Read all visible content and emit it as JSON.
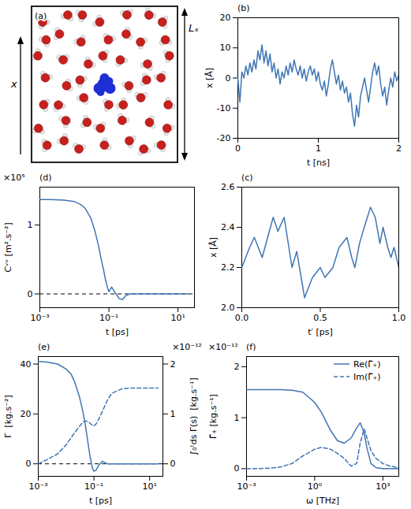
{
  "chart_data": [
    {
      "panel_label": "(a)",
      "type": "image",
      "axis_text": "x",
      "length_text": "Lₓ"
    },
    {
      "panel_label": "(b)",
      "type": "line",
      "x_label": "t [ns]",
      "y_label": "x [Å]",
      "x": [
        0,
        0.025,
        0.05,
        0.075,
        0.1,
        0.125,
        0.15,
        0.175,
        0.2,
        0.225,
        0.25,
        0.275,
        0.3,
        0.325,
        0.35,
        0.375,
        0.4,
        0.425,
        0.45,
        0.475,
        0.5,
        0.525,
        0.55,
        0.575,
        0.6,
        0.625,
        0.65,
        0.675,
        0.7,
        0.725,
        0.75,
        0.775,
        0.8,
        0.825,
        0.85,
        0.875,
        0.9,
        0.925,
        0.95,
        0.975,
        1.0,
        1.025,
        1.05,
        1.075,
        1.1,
        1.125,
        1.15,
        1.175,
        1.2,
        1.225,
        1.25,
        1.275,
        1.3,
        1.325,
        1.35,
        1.375,
        1.4,
        1.425,
        1.45,
        1.475,
        1.5,
        1.525,
        1.55,
        1.575,
        1.6,
        1.625,
        1.65,
        1.675,
        1.7,
        1.725,
        1.75,
        1.775,
        1.8,
        1.825,
        1.85,
        1.875,
        1.9,
        1.925,
        1.95,
        1.975,
        2.0
      ],
      "series": [
        {
          "color": "#3f76b4",
          "line_style": "solid",
          "values": [
            0,
            -8,
            2,
            0,
            4,
            1,
            5,
            2,
            6,
            3,
            9,
            6,
            11,
            5,
            9,
            4,
            8,
            2,
            5,
            0,
            3,
            -2,
            2,
            0,
            4,
            1,
            5,
            2,
            6,
            3,
            1,
            4,
            0,
            3,
            -1,
            2,
            4,
            1,
            3,
            -1,
            2,
            -2,
            -4,
            -1,
            -6,
            -2,
            3,
            6,
            2,
            -2,
            1,
            -4,
            -1,
            -5,
            -3,
            -8,
            -5,
            -12,
            -16,
            -9,
            -13,
            -6,
            -3,
            0,
            -4,
            -8,
            -3,
            2,
            5,
            1,
            4,
            -2,
            -6,
            -3,
            -9,
            -4,
            0,
            -3,
            2,
            -1,
            1
          ]
        }
      ],
      "xlim": [
        0,
        2
      ],
      "xticks": [
        0,
        1,
        2
      ],
      "ylim": [
        -20,
        20
      ],
      "yticks": [
        -20,
        -10,
        0,
        10,
        20
      ]
    },
    {
      "panel_label": "(c)",
      "type": "line",
      "x_label": "t′ [ps]",
      "y_label": "x [Å]",
      "x": [
        0,
        0.05,
        0.08,
        0.13,
        0.2,
        0.23,
        0.27,
        0.32,
        0.35,
        0.4,
        0.45,
        0.5,
        0.53,
        0.58,
        0.62,
        0.67,
        0.7,
        0.72,
        0.75,
        0.78,
        0.82,
        0.85,
        0.88,
        0.9,
        0.93,
        0.95,
        0.97,
        1.0
      ],
      "series": [
        {
          "color": "#3f76b4",
          "line_style": "solid",
          "values": [
            2.2,
            2.3,
            2.35,
            2.25,
            2.45,
            2.38,
            2.45,
            2.2,
            2.28,
            2.05,
            2.15,
            2.2,
            2.15,
            2.2,
            2.3,
            2.35,
            2.25,
            2.2,
            2.32,
            2.4,
            2.5,
            2.45,
            2.32,
            2.4,
            2.3,
            2.25,
            2.3,
            2.2
          ]
        }
      ],
      "xlim": [
        0,
        1
      ],
      "xticks": [
        {
          "value": 0,
          "label": "0.0"
        },
        {
          "value": 0.5,
          "label": "0.5"
        },
        {
          "value": 1,
          "label": "1.0"
        }
      ],
      "ylim": [
        2.0,
        2.6
      ],
      "yticks": [
        {
          "value": 2.0,
          "label": "2.0"
        },
        2.2,
        2.4,
        2.6
      ]
    },
    {
      "panel_label": "(d)",
      "type": "line",
      "x_label": "t [ps]",
      "y_label": "Cᵛᵛ [m².s⁻²]",
      "y_multiplier": "×10⁵",
      "log": "x",
      "reference_y": 0,
      "x": [
        0.001,
        0.002,
        0.005,
        0.01,
        0.015,
        0.02,
        0.03,
        0.04,
        0.05,
        0.06,
        0.07,
        0.08,
        0.09,
        0.1,
        0.12,
        0.15,
        0.2,
        0.25,
        0.3,
        0.4,
        0.5,
        1,
        2,
        5,
        10,
        20
      ],
      "series": [
        {
          "color": "#3f76b4",
          "line_style": "solid",
          "values": [
            1.37,
            1.37,
            1.36,
            1.34,
            1.3,
            1.25,
            1.1,
            0.9,
            0.7,
            0.5,
            0.35,
            0.2,
            0.1,
            0.03,
            0.1,
            0.02,
            -0.07,
            -0.08,
            -0.03,
            0,
            0,
            0,
            0,
            0,
            0,
            0
          ]
        }
      ],
      "xlim": [
        0.001,
        30
      ],
      "xticks": [
        {
          "value": 0.001,
          "label": "10⁻³"
        },
        {
          "value": 0.1,
          "label": "10⁻¹"
        },
        {
          "value": 10,
          "label": "10¹"
        }
      ],
      "ylim": [
        -0.2,
        1.55
      ],
      "yticks": [
        0,
        1
      ]
    },
    {
      "panel_label": "(e)",
      "type": "line",
      "x_label": "t [ps]",
      "y_label": "Γ  [kg.s⁻²]",
      "y2_label": "∫₀ᵗds Γ(s)  [kg.s⁻¹]",
      "y2_multiplier": "×10⁻¹²",
      "log": "x",
      "reference_y": 0,
      "x": [
        0.001,
        0.002,
        0.005,
        0.01,
        0.015,
        0.02,
        0.03,
        0.04,
        0.05,
        0.06,
        0.07,
        0.08,
        0.09,
        0.1,
        0.12,
        0.15,
        0.2,
        0.25,
        0.3,
        0.4,
        0.5,
        1,
        2,
        5,
        10,
        20
      ],
      "series": [
        {
          "color": "#3f76b4",
          "line_style": "solid",
          "values": [
            41,
            40.8,
            40,
            38,
            36,
            33,
            27,
            21,
            15,
            9,
            4,
            0.5,
            -2,
            -3,
            -2.5,
            -0.5,
            1,
            0.5,
            0,
            0,
            0,
            0,
            0,
            0,
            0,
            0
          ]
        },
        {
          "color": "#3f76b4",
          "line_style": "dashed",
          "axis": "y2",
          "values": [
            0,
            0.08,
            0.2,
            0.38,
            0.52,
            0.62,
            0.75,
            0.83,
            0.86,
            0.85,
            0.82,
            0.79,
            0.77,
            0.76,
            0.8,
            0.9,
            1.05,
            1.17,
            1.27,
            1.38,
            1.43,
            1.5,
            1.52,
            1.52,
            1.52,
            1.52
          ]
        }
      ],
      "xlim": [
        0.001,
        30
      ],
      "xticks": [
        {
          "value": 0.001,
          "label": "10⁻³"
        },
        {
          "value": 0.1,
          "label": "10⁻¹"
        },
        {
          "value": 10,
          "label": "10¹"
        }
      ],
      "ylim": [
        -5,
        43
      ],
      "yticks": [
        0,
        20,
        40
      ],
      "y2lim": [
        -0.25,
        2.15
      ],
      "y2ticks": [
        0,
        1,
        2
      ]
    },
    {
      "panel_label": "(f)",
      "type": "line",
      "x_label": "ω [THz]",
      "y_label": "Γ̃₊ [kg.s⁻¹]",
      "y_multiplier": "×10⁻¹²",
      "log": "x",
      "legend": "upper right",
      "x": [
        0.001,
        0.003,
        0.01,
        0.03,
        0.1,
        0.3,
        1,
        2,
        5,
        10,
        20,
        40,
        70,
        100,
        150,
        200,
        300,
        500,
        1000,
        2000,
        5000
      ],
      "series": [
        {
          "name": "Re(Γ̃₊)",
          "color": "#3f76b4",
          "line_style": "solid",
          "values": [
            1.55,
            1.55,
            1.55,
            1.55,
            1.54,
            1.5,
            1.3,
            1.1,
            0.75,
            0.55,
            0.5,
            0.6,
            0.8,
            0.9,
            0.7,
            0.4,
            0.1,
            0.02,
            0,
            0,
            0
          ]
        },
        {
          "name": "Im(Γ̃₊)",
          "color": "#3f76b4",
          "line_style": "dashed",
          "values": [
            0,
            0,
            0.01,
            0.03,
            0.1,
            0.25,
            0.38,
            0.42,
            0.38,
            0.3,
            0.2,
            0.05,
            0.1,
            0.5,
            0.78,
            0.6,
            0.35,
            0.2,
            0.1,
            0.05,
            0.02
          ]
        }
      ],
      "xlim": [
        0.001,
        5000
      ],
      "xticks": [
        {
          "value": 0.001,
          "label": "10⁻³"
        },
        {
          "value": 1,
          "label": "10⁰"
        },
        {
          "value": 1000,
          "label": "10³"
        }
      ],
      "ylim": [
        -0.15,
        2.2
      ],
      "yticks": [
        0,
        1,
        2
      ]
    }
  ]
}
